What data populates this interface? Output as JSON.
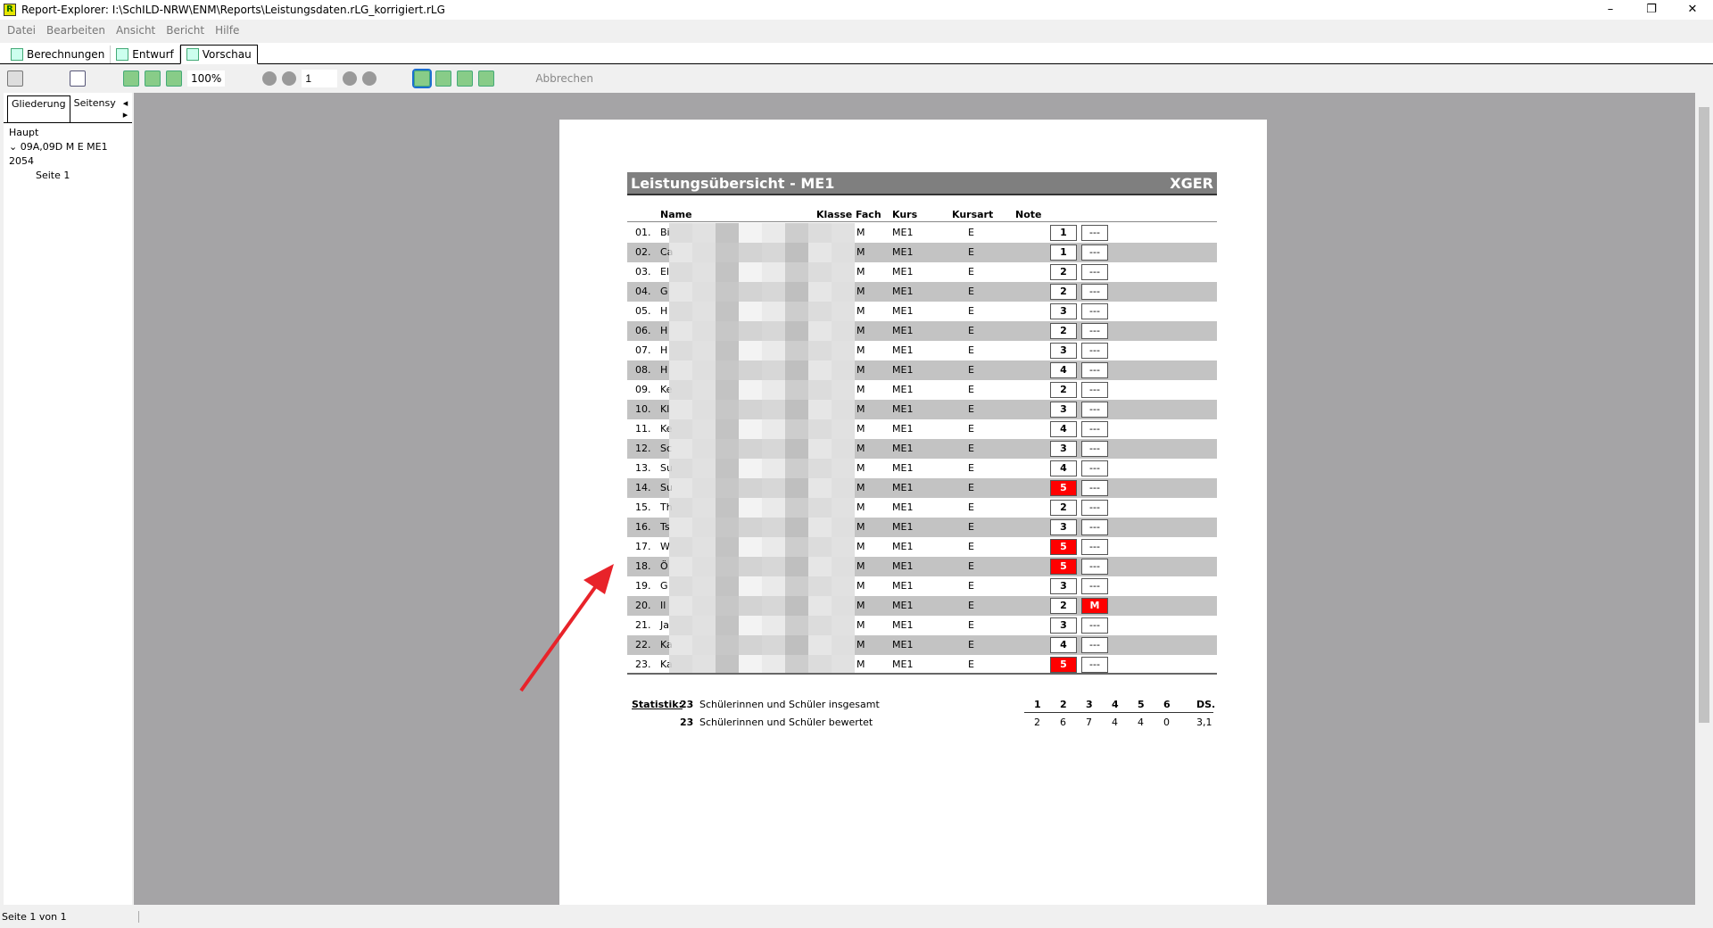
{
  "window": {
    "title": "Report-Explorer: I:\\SchILD-NRW\\ENM\\Reports\\Leistungsdaten.rLG_korrigiert.rLG",
    "app_icon": "R"
  },
  "menu": [
    "Datei",
    "Bearbeiten",
    "Ansicht",
    "Bericht",
    "Hilfe"
  ],
  "tabs": [
    {
      "label": "Berechnungen"
    },
    {
      "label": "Entwurf"
    },
    {
      "label": "Vorschau",
      "active": true
    }
  ],
  "toolbar": {
    "zoom": "100%",
    "page": "1",
    "cancel": "Abbrechen"
  },
  "left": {
    "tabs": [
      "Gliederung",
      "Seitensy"
    ],
    "tree": {
      "root": "Haupt",
      "group": "09A,09D M E ME1 2054",
      "page": "Seite 1"
    }
  },
  "report": {
    "title": "Leistungsübersicht  - ME1",
    "code": "XGER",
    "headers": {
      "name": "Name",
      "klasse": "Klasse",
      "fach": "Fach",
      "kurs": "Kurs",
      "kursart": "Kursart",
      "note": "Note"
    },
    "rows": [
      {
        "nr": "01.",
        "name": "Bi",
        "fach": "M",
        "kurs": "ME1",
        "art": "E",
        "note": "1",
        "extra": "---"
      },
      {
        "nr": "02.",
        "name": "Ca",
        "fach": "M",
        "kurs": "ME1",
        "art": "E",
        "note": "1",
        "extra": "---"
      },
      {
        "nr": "03.",
        "name": "El",
        "fach": "M",
        "kurs": "ME1",
        "art": "E",
        "note": "2",
        "extra": "---"
      },
      {
        "nr": "04.",
        "name": "G",
        "fach": "M",
        "kurs": "ME1",
        "art": "E",
        "note": "2",
        "extra": "---"
      },
      {
        "nr": "05.",
        "name": "H",
        "fach": "M",
        "kurs": "ME1",
        "art": "E",
        "note": "3",
        "extra": "---"
      },
      {
        "nr": "06.",
        "name": "H",
        "fach": "M",
        "kurs": "ME1",
        "art": "E",
        "note": "2",
        "extra": "---"
      },
      {
        "nr": "07.",
        "name": "H",
        "fach": "M",
        "kurs": "ME1",
        "art": "E",
        "note": "3",
        "extra": "---"
      },
      {
        "nr": "08.",
        "name": "H",
        "fach": "M",
        "kurs": "ME1",
        "art": "E",
        "note": "4",
        "extra": "---"
      },
      {
        "nr": "09.",
        "name": "Ke",
        "fach": "M",
        "kurs": "ME1",
        "art": "E",
        "note": "2",
        "extra": "---"
      },
      {
        "nr": "10.",
        "name": "Kl",
        "fach": "M",
        "kurs": "ME1",
        "art": "E",
        "note": "3",
        "extra": "---"
      },
      {
        "nr": "11.",
        "name": "Ke",
        "fach": "M",
        "kurs": "ME1",
        "art": "E",
        "note": "4",
        "extra": "---"
      },
      {
        "nr": "12.",
        "name": "Sc",
        "fach": "M",
        "kurs": "ME1",
        "art": "E",
        "note": "3",
        "extra": "---"
      },
      {
        "nr": "13.",
        "name": "Su",
        "fach": "M",
        "kurs": "ME1",
        "art": "E",
        "note": "4",
        "extra": "---"
      },
      {
        "nr": "14.",
        "name": "Su",
        "fach": "M",
        "kurs": "ME1",
        "art": "E",
        "note": "5",
        "extra": "---"
      },
      {
        "nr": "15.",
        "name": "Th",
        "fach": "M",
        "kurs": "ME1",
        "art": "E",
        "note": "2",
        "extra": "---"
      },
      {
        "nr": "16.",
        "name": "Ts",
        "fach": "M",
        "kurs": "ME1",
        "art": "E",
        "note": "3",
        "extra": "---"
      },
      {
        "nr": "17.",
        "name": "W",
        "fach": "M",
        "kurs": "ME1",
        "art": "E",
        "note": "5",
        "extra": "---"
      },
      {
        "nr": "18.",
        "name": "Ö",
        "fach": "M",
        "kurs": "ME1",
        "art": "E",
        "note": "5",
        "extra": "---"
      },
      {
        "nr": "19.",
        "name": "G",
        "fach": "M",
        "kurs": "ME1",
        "art": "E",
        "note": "3",
        "extra": "---"
      },
      {
        "nr": "20.",
        "name": "Il",
        "fach": "M",
        "kurs": "ME1",
        "art": "E",
        "note": "2",
        "extra": "M"
      },
      {
        "nr": "21.",
        "name": "Ja",
        "fach": "M",
        "kurs": "ME1",
        "art": "E",
        "note": "3",
        "extra": "---"
      },
      {
        "nr": "22.",
        "name": "Ka",
        "fach": "M",
        "kurs": "ME1",
        "art": "E",
        "note": "4",
        "extra": "---"
      },
      {
        "nr": "23.",
        "name": "Ka",
        "fach": "M",
        "kurs": "ME1",
        "art": "E",
        "note": "5",
        "extra": "---"
      }
    ],
    "stats": {
      "label": "Statistik:",
      "total": "23",
      "total_text": "Schülerinnen und Schüler insgesamt",
      "rated": "23",
      "rated_text": "Schülerinnen und Schüler bewertet",
      "heads": [
        "1",
        "2",
        "3",
        "4",
        "5",
        "6",
        "DS."
      ],
      "values": [
        "2",
        "6",
        "7",
        "4",
        "4",
        "0",
        "3,1"
      ]
    }
  },
  "colors": {
    "fail": "#ff0000",
    "stripe": "#c3c3c3",
    "arrow": "#e8232a"
  },
  "status": "Seite 1 von 1"
}
